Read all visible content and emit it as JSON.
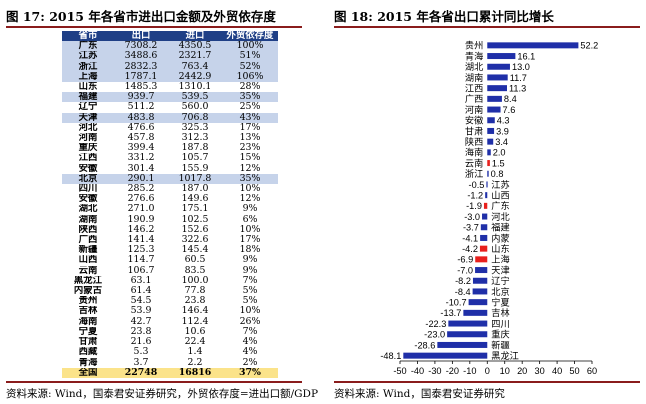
{
  "left": {
    "title": "图 17: 2015 年各省市进出口金额及外贸依存度",
    "source": "资料来源: Wind，国泰君安证券研究，外贸依存度=进出口额/GDP",
    "headers": [
      "省市",
      "出口",
      "进口",
      "外贸依存度"
    ],
    "rows": [
      [
        "广东",
        "7308.2",
        "4350.5",
        "100%"
      ],
      [
        "江苏",
        "3488.6",
        "2321.7",
        "51%"
      ],
      [
        "浙江",
        "2832.3",
        "763.4",
        "52%"
      ],
      [
        "上海",
        "1787.1",
        "2442.9",
        "106%"
      ],
      [
        "山东",
        "1485.3",
        "1310.1",
        "28%"
      ],
      [
        "福建",
        "939.7",
        "539.5",
        "35%"
      ],
      [
        "辽宁",
        "511.2",
        "560.0",
        "25%"
      ],
      [
        "天津",
        "483.8",
        "706.8",
        "43%"
      ],
      [
        "河北",
        "476.6",
        "325.3",
        "17%"
      ],
      [
        "河南",
        "457.8",
        "312.3",
        "13%"
      ],
      [
        "重庆",
        "399.4",
        "187.8",
        "23%"
      ],
      [
        "江西",
        "331.2",
        "105.7",
        "15%"
      ],
      [
        "安徽",
        "301.4",
        "155.9",
        "12%"
      ],
      [
        "北京",
        "290.1",
        "1017.8",
        "35%"
      ],
      [
        "四川",
        "285.2",
        "187.0",
        "10%"
      ],
      [
        "安徽",
        "276.6",
        "149.6",
        "12%"
      ],
      [
        "湖北",
        "271.0",
        "175.1",
        "9%"
      ],
      [
        "湖南",
        "190.9",
        "102.5",
        "6%"
      ],
      [
        "陕西",
        "146.2",
        "152.6",
        "10%"
      ],
      [
        "广西",
        "141.4",
        "322.6",
        "17%"
      ],
      [
        "新疆",
        "125.3",
        "145.4",
        "18%"
      ],
      [
        "山西",
        "114.7",
        "60.5",
        "9%"
      ],
      [
        "云南",
        "106.7",
        "83.5",
        "9%"
      ],
      [
        "黑龙江",
        "63.1",
        "100.0",
        "7%"
      ],
      [
        "内蒙古",
        "61.4",
        "77.8",
        "5%"
      ],
      [
        "贵州",
        "54.5",
        "23.8",
        "5%"
      ],
      [
        "吉林",
        "53.9",
        "146.4",
        "10%"
      ],
      [
        "海南",
        "42.7",
        "112.4",
        "26%"
      ],
      [
        "宁夏",
        "23.8",
        "10.6",
        "7%"
      ],
      [
        "甘肃",
        "21.6",
        "22.4",
        "4%"
      ],
      [
        "西藏",
        "5.3",
        "1.4",
        "4%"
      ],
      [
        "青海",
        "3.7",
        "2.2",
        "2%"
      ],
      [
        "全国",
        "22748",
        "16816",
        "37%"
      ]
    ],
    "highlight_rows": [
      0,
      1,
      2,
      3,
      5,
      7,
      13
    ],
    "total_row": 32,
    "colors": {
      "header_bg": "#1f3f86",
      "highlight": "#c6d3ea",
      "total": "#fbe38a"
    }
  },
  "right": {
    "title": "图 18:   2015 年各省出口累计同比增长",
    "source": "资料来源: Wind，国泰君安证券研究"
  },
  "chart_data": {
    "type": "bar",
    "orientation": "horizontal",
    "categories": [
      "贵州",
      "青海",
      "湖北",
      "湖南",
      "江西",
      "广西",
      "河南",
      "安徽",
      "甘肃",
      "陕西",
      "海南",
      "云南",
      "浙江",
      "江苏",
      "山西",
      "广东",
      "河北",
      "福建",
      "内蒙",
      "山东",
      "上海",
      "天津",
      "辽宁",
      "北京",
      "宁夏",
      "吉林",
      "四川",
      "重庆",
      "新疆",
      "黑龙江"
    ],
    "values": [
      52.2,
      16.1,
      13.0,
      11.7,
      11.3,
      8.4,
      7.6,
      4.3,
      3.9,
      3.4,
      2.0,
      1.5,
      0.8,
      -0.5,
      -1.2,
      -1.9,
      -3.0,
      -3.7,
      -4.1,
      -4.2,
      -6.9,
      -7.0,
      -8.2,
      -8.4,
      -10.7,
      -13.7,
      -22.3,
      -23.0,
      -28.6,
      -48.1
    ],
    "value_labels": [
      "52.2",
      "16.1",
      "13.0",
      "11.7",
      "11.3",
      "8.4",
      "7.6",
      "4.3",
      "3.9",
      "3.4",
      "2.0",
      "1.5",
      "0.8",
      "-0.5",
      "-1.2",
      "-1.9",
      "-3.0",
      "-3.7",
      "-4.1",
      "-4.2",
      "-6.9",
      "-7.0",
      "-8.2",
      "-8.4",
      "-10.7",
      "-13.7",
      "-22.3",
      "-23.0",
      "-28.6",
      "-48.1"
    ],
    "red_categories": [
      "云南",
      "广东",
      "山东",
      "上海"
    ],
    "xlim": [
      -50,
      60
    ],
    "xticks": [
      "-50",
      "-40",
      "-30",
      "-20",
      "-10",
      "0",
      "10",
      "20",
      "30",
      "40",
      "50",
      "60"
    ],
    "colors": {
      "bar": "#1f2fa8",
      "highlight": "#e8201d"
    }
  }
}
